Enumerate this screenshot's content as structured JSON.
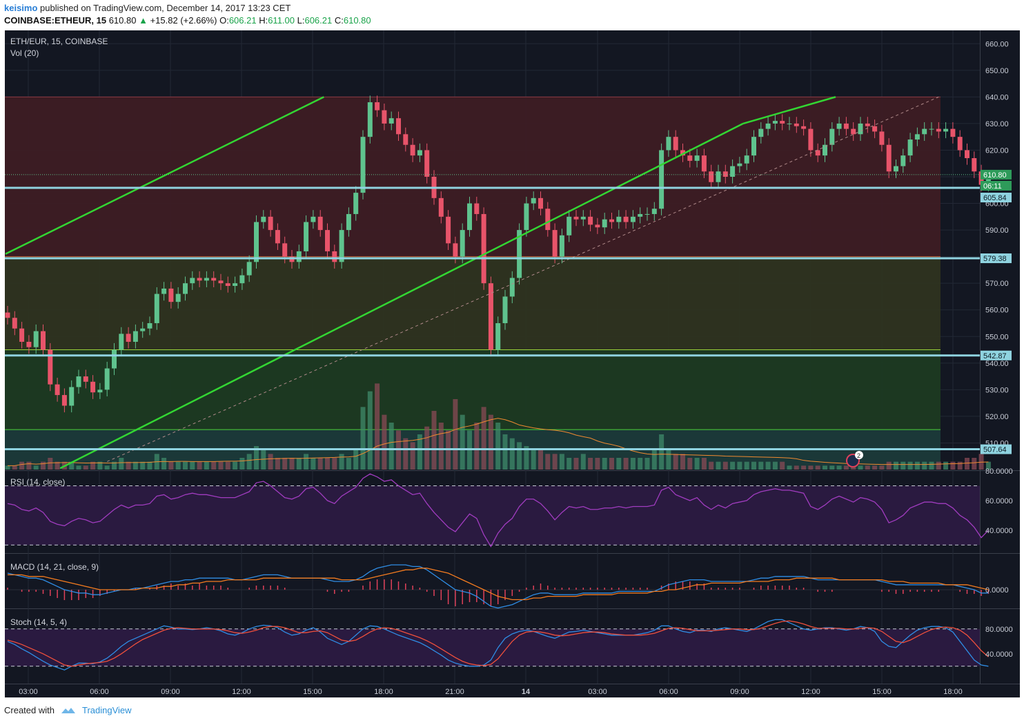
{
  "header": {
    "user": "keisimo",
    "published": "published on TradingView.com, December 14, 2017 13:23 CET",
    "symbol": "COINBASE:ETHEUR, 15",
    "last": "610.80",
    "change": "+15.82 (+2.66%)",
    "o_label": "O:",
    "o": "606.21",
    "h_label": "H:",
    "h": "611.00",
    "l_label": "L:",
    "l": "606.21",
    "c_label": "C:",
    "c": "610.80"
  },
  "panes": {
    "main_title": "ETH/EUR, 15, COINBASE",
    "vol_title": "Vol (20)",
    "rsi_title": "RSI (14, close)",
    "macd_title": "MACD (14, 21, close, 9)",
    "stoch_title": "Stoch (14, 5, 4)"
  },
  "colors": {
    "background": "#131722",
    "up": "#5fc38e",
    "down": "#e8546a",
    "hline": "#8fd3e0",
    "trendline": "#33d633",
    "rsi": "#a13cc0",
    "macd": "#2f8de4",
    "signal": "#f57c1f",
    "stoch_k": "#2f8de4",
    "stoch_d": "#f0503c"
  },
  "footer": {
    "created_with": "Created with",
    "brand": "TradingView"
  },
  "chart_data": [
    {
      "type": "candlestick",
      "title": "ETH/EUR, 15, COINBASE",
      "ylim": [
        500,
        665
      ],
      "y_ticks": [
        510,
        520,
        530,
        540,
        550,
        560,
        570,
        580,
        590,
        600,
        610,
        620,
        630,
        640,
        650,
        660
      ],
      "x_ticks": [
        "03:00",
        "06:00",
        "09:00",
        "12:00",
        "15:00",
        "18:00",
        "21:00",
        "14",
        "03:00",
        "06:00",
        "09:00",
        "12:00",
        "15:00",
        "18:00"
      ],
      "price_labels": [
        "610.80",
        "06:11",
        "605.84",
        "579.38",
        "542.87",
        "507.64"
      ],
      "horizontal_levels": [
        605.84,
        579.38,
        542.87,
        507.64
      ],
      "zones": [
        {
          "from": 580,
          "to": 640,
          "color": "#3d1c24"
        },
        {
          "from": 545,
          "to": 580,
          "color": "#2e3320"
        },
        {
          "from": 515,
          "to": 545,
          "color": "#1c3a22"
        },
        {
          "from": 500,
          "to": 515,
          "color": "#1b3a3a"
        }
      ],
      "close": [
        557,
        553,
        548,
        546,
        552,
        545,
        532,
        528,
        524,
        531,
        535,
        533,
        529,
        530,
        538,
        545,
        551,
        548,
        552,
        553,
        555,
        566,
        568,
        563,
        566,
        570,
        572,
        571,
        572,
        571,
        570,
        569,
        570,
        573,
        578,
        593,
        595,
        590,
        585,
        580,
        578,
        582,
        593,
        595,
        590,
        582,
        578,
        590,
        596,
        604,
        625,
        638,
        635,
        630,
        632,
        626,
        622,
        618,
        620,
        610,
        602,
        595,
        585,
        580,
        590,
        600,
        596,
        570,
        545,
        555,
        565,
        572,
        590,
        600,
        602,
        598,
        590,
        580,
        588,
        595,
        594,
        595,
        592,
        591,
        594,
        593,
        595,
        593,
        595,
        596,
        596,
        598,
        620,
        625,
        620,
        618,
        616,
        618,
        612,
        608,
        612,
        610,
        614,
        615,
        618,
        625,
        628,
        630,
        631,
        630,
        630,
        629,
        628,
        620,
        618,
        622,
        628,
        630,
        628,
        626,
        630,
        629,
        627,
        622,
        612,
        614,
        618,
        624,
        626,
        628,
        628,
        627,
        628,
        625,
        620,
        617,
        612,
        607,
        610
      ]
    },
    {
      "type": "bar",
      "title": "Vol (20)",
      "values": [
        1,
        1,
        2,
        2,
        1,
        2,
        3,
        2,
        2,
        2,
        1,
        1,
        2,
        2,
        1,
        2,
        3,
        2,
        2,
        2,
        2,
        4,
        3,
        2,
        2,
        2,
        2,
        2,
        2,
        2,
        2,
        2,
        2,
        3,
        4,
        6,
        5,
        4,
        3,
        3,
        3,
        3,
        4,
        3,
        3,
        3,
        3,
        4,
        3,
        5,
        16,
        20,
        22,
        14,
        12,
        10,
        8,
        7,
        9,
        11,
        15,
        12,
        10,
        18,
        14,
        10,
        12,
        16,
        14,
        12,
        9,
        8,
        7,
        6,
        5,
        5,
        4,
        4,
        4,
        3,
        3,
        4,
        3,
        3,
        3,
        3,
        3,
        3,
        3,
        3,
        3,
        5,
        9,
        5,
        4,
        4,
        3,
        3,
        3,
        2,
        2,
        2,
        2,
        2,
        2,
        2,
        2,
        2,
        2,
        2,
        1,
        1,
        1,
        1,
        1,
        1,
        1,
        1,
        1,
        1,
        1,
        1,
        1,
        1,
        2,
        2,
        2,
        2,
        2,
        2,
        2,
        2,
        2,
        2,
        2,
        3,
        3,
        4,
        2
      ]
    },
    {
      "type": "line",
      "title": "RSI (14, close)",
      "ylim": [
        25,
        80
      ],
      "y_ticks": [
        "40.0000",
        "60.0000",
        "80.0000"
      ],
      "bands": [
        30,
        70
      ],
      "values": [
        58,
        57,
        54,
        53,
        55,
        52,
        46,
        44,
        43,
        46,
        48,
        47,
        45,
        46,
        50,
        54,
        57,
        55,
        57,
        57,
        58,
        63,
        64,
        61,
        62,
        64,
        65,
        64,
        64,
        63,
        62,
        62,
        62,
        64,
        66,
        72,
        73,
        70,
        66,
        62,
        61,
        63,
        68,
        69,
        65,
        60,
        58,
        63,
        66,
        69,
        75,
        78,
        76,
        73,
        74,
        70,
        67,
        64,
        65,
        58,
        52,
        47,
        42,
        39,
        45,
        51,
        48,
        37,
        29,
        38,
        44,
        48,
        56,
        61,
        61,
        58,
        53,
        47,
        52,
        56,
        55,
        56,
        54,
        54,
        55,
        55,
        56,
        55,
        56,
        56,
        56,
        57,
        67,
        69,
        64,
        62,
        60,
        62,
        57,
        54,
        57,
        55,
        58,
        59,
        60,
        64,
        66,
        67,
        68,
        67,
        67,
        66,
        65,
        56,
        54,
        57,
        61,
        63,
        61,
        59,
        62,
        61,
        59,
        54,
        45,
        47,
        50,
        55,
        57,
        59,
        59,
        58,
        58,
        55,
        50,
        47,
        42,
        35,
        40
      ]
    },
    {
      "type": "line",
      "title": "MACD (14, 21, close, 9)",
      "y_ticks": [
        "0.0000"
      ],
      "series": [
        {
          "values": [
            10,
            9,
            8,
            7,
            7,
            6,
            4,
            2,
            0,
            -1,
            -2,
            -2,
            -3,
            -3,
            -2,
            -1,
            0,
            0,
            1,
            1,
            2,
            3,
            4,
            5,
            5,
            6,
            6,
            7,
            7,
            7,
            7,
            7,
            6,
            6,
            7,
            8,
            9,
            9,
            9,
            8,
            7,
            7,
            7,
            7,
            7,
            6,
            5,
            5,
            5,
            6,
            8,
            11,
            13,
            14,
            15,
            15,
            15,
            14,
            14,
            12,
            9,
            6,
            3,
            0,
            -1,
            -2,
            -4,
            -7,
            -10,
            -11,
            -10,
            -9,
            -7,
            -5,
            -3,
            -2,
            -2,
            -3,
            -3,
            -3,
            -3,
            -2,
            -2,
            -2,
            -2,
            -2,
            -1,
            -1,
            -1,
            -1,
            -1,
            -1,
            1,
            3,
            4,
            5,
            6,
            6,
            6,
            5,
            5,
            5,
            5,
            5,
            5,
            6,
            7,
            7,
            8,
            8,
            8,
            8,
            8,
            7,
            6,
            6,
            6,
            6,
            6,
            6,
            6,
            6,
            6,
            5,
            4,
            3,
            3,
            3,
            3,
            3,
            3,
            3,
            3,
            3,
            2,
            1,
            0,
            -2,
            -2
          ]
        },
        {
          "values": [
            9,
            9,
            9,
            8,
            8,
            8,
            7,
            6,
            5,
            4,
            3,
            2,
            1,
            0,
            0,
            0,
            0,
            0,
            0,
            1,
            1,
            1,
            2,
            2,
            3,
            3,
            4,
            4,
            5,
            5,
            5,
            6,
            6,
            6,
            6,
            6,
            7,
            7,
            7,
            7,
            7,
            7,
            7,
            7,
            7,
            7,
            7,
            6,
            6,
            6,
            6,
            7,
            8,
            9,
            10,
            11,
            12,
            12,
            13,
            13,
            12,
            11,
            10,
            8,
            6,
            4,
            2,
            0,
            -2,
            -4,
            -5,
            -6,
            -6,
            -6,
            -5,
            -5,
            -4,
            -4,
            -4,
            -4,
            -4,
            -3,
            -3,
            -3,
            -3,
            -3,
            -2,
            -2,
            -2,
            -2,
            -2,
            -1,
            -1,
            0,
            0,
            1,
            2,
            3,
            3,
            4,
            4,
            4,
            4,
            4,
            5,
            5,
            5,
            5,
            6,
            6,
            6,
            7,
            7,
            7,
            7,
            7,
            7,
            6,
            6,
            6,
            6,
            6,
            6,
            6,
            5,
            5,
            5,
            4,
            4,
            4,
            4,
            4,
            3,
            3,
            3,
            3,
            2,
            1,
            0
          ]
        }
      ]
    },
    {
      "type": "line",
      "title": "Stoch (14, 5, 4)",
      "ylim": [
        0,
        100
      ],
      "y_ticks": [
        "40.0000",
        "80.0000"
      ],
      "bands": [
        20,
        80
      ],
      "series": [
        {
          "values": [
            60,
            55,
            48,
            42,
            35,
            28,
            22,
            18,
            14,
            20,
            25,
            25,
            24,
            27,
            33,
            42,
            52,
            60,
            65,
            70,
            75,
            80,
            85,
            83,
            80,
            80,
            79,
            80,
            82,
            80,
            77,
            72,
            70,
            74,
            80,
            84,
            86,
            85,
            82,
            75,
            70,
            72,
            78,
            82,
            75,
            65,
            60,
            55,
            60,
            70,
            80,
            85,
            84,
            80,
            75,
            70,
            66,
            62,
            58,
            52,
            45,
            38,
            30,
            25,
            22,
            20,
            20,
            22,
            30,
            50,
            65,
            72,
            76,
            78,
            76,
            72,
            68,
            65,
            70,
            75,
            76,
            78,
            76,
            74,
            72,
            70,
            70,
            70,
            70,
            72,
            74,
            78,
            85,
            85,
            80,
            76,
            74,
            78,
            78,
            76,
            80,
            82,
            80,
            78,
            76,
            80,
            86,
            92,
            95,
            95,
            90,
            85,
            80,
            78,
            80,
            82,
            82,
            80,
            78,
            80,
            84,
            82,
            76,
            60,
            52,
            50,
            60,
            70,
            78,
            82,
            84,
            84,
            82,
            75,
            60,
            45,
            30,
            22,
            20
          ]
        },
        {
          "values": [
            62,
            59,
            55,
            50,
            45,
            40,
            34,
            28,
            22,
            20,
            22,
            24,
            25,
            26,
            28,
            33,
            40,
            48,
            56,
            63,
            68,
            73,
            78,
            81,
            82,
            81,
            80,
            80,
            80,
            80,
            79,
            77,
            74,
            73,
            75,
            78,
            82,
            84,
            84,
            82,
            78,
            74,
            74,
            76,
            77,
            74,
            68,
            62,
            60,
            62,
            68,
            75,
            80,
            82,
            81,
            78,
            74,
            70,
            66,
            61,
            55,
            48,
            41,
            34,
            28,
            24,
            22,
            21,
            23,
            32,
            46,
            60,
            70,
            75,
            76,
            75,
            73,
            70,
            69,
            70,
            72,
            74,
            75,
            75,
            74,
            72,
            71,
            70,
            70,
            70,
            71,
            73,
            77,
            81,
            82,
            81,
            79,
            77,
            77,
            77,
            78,
            79,
            80,
            80,
            79,
            79,
            81,
            85,
            89,
            92,
            93,
            91,
            88,
            84,
            81,
            81,
            81,
            81,
            80,
            80,
            81,
            82,
            81,
            76,
            68,
            60,
            58,
            62,
            68,
            74,
            79,
            82,
            83,
            82,
            78,
            70,
            58,
            45,
            35
          ]
        }
      ]
    }
  ]
}
